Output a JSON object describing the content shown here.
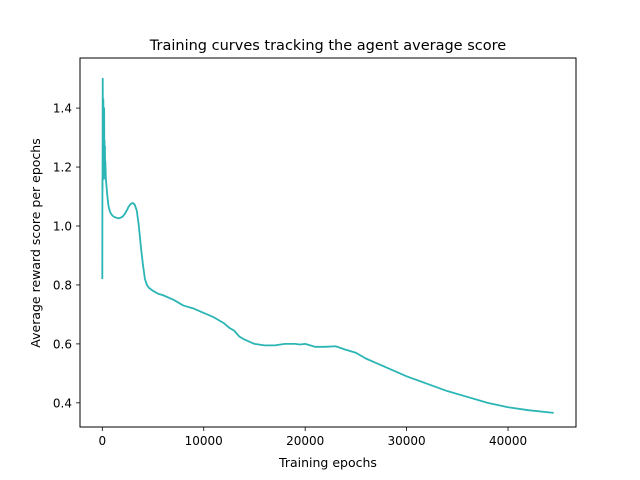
{
  "chart_data": {
    "type": "line",
    "title": "Training curves tracking the agent average score",
    "xlabel": "Training epochs",
    "ylabel": "Average reward score per epochs",
    "xlim": [
      -2200,
      46700
    ],
    "ylim": [
      0.318,
      1.57
    ],
    "x_ticks": [
      0,
      10000,
      20000,
      30000,
      40000
    ],
    "x_tick_labels": [
      "0",
      "10000",
      "20000",
      "30000",
      "40000"
    ],
    "y_ticks": [
      0.4,
      0.6,
      0.8,
      1.0,
      1.2,
      1.4
    ],
    "y_tick_labels": [
      "0.4",
      "0.6",
      "0.8",
      "1.0",
      "1.2",
      "1.4"
    ],
    "grid": false,
    "legend": "none",
    "series": [
      {
        "color": "#2cb5b5",
        "x": [
          0,
          10,
          20,
          40,
          60,
          80,
          100,
          120,
          140,
          160,
          180,
          200,
          220,
          240,
          260,
          280,
          300,
          350,
          400,
          450,
          500,
          600,
          700,
          800,
          900,
          1000,
          1200,
          1400,
          1600,
          1800,
          2000,
          2200,
          2400,
          2600,
          2800,
          3000,
          3100,
          3200,
          3400,
          3600,
          3800,
          4000,
          4200,
          4400,
          4600,
          5000,
          5500,
          6000,
          7000,
          8000,
          9000,
          10000,
          11000,
          12000,
          12500,
          13000,
          13500,
          14000,
          15000,
          16000,
          17000,
          18000,
          19000,
          19500,
          20000,
          21000,
          22000,
          23000,
          24000,
          25000,
          26000,
          28000,
          30000,
          32000,
          34000,
          36000,
          38000,
          40000,
          42000,
          44500
        ],
        "y": [
          0.82,
          1.16,
          1.12,
          1.5,
          1.34,
          1.2,
          1.43,
          1.3,
          1.33,
          1.16,
          1.4,
          1.25,
          1.29,
          1.2,
          1.27,
          1.18,
          1.22,
          1.16,
          1.14,
          1.12,
          1.1,
          1.07,
          1.055,
          1.045,
          1.04,
          1.035,
          1.03,
          1.028,
          1.026,
          1.028,
          1.032,
          1.04,
          1.052,
          1.066,
          1.075,
          1.078,
          1.076,
          1.072,
          1.052,
          1.0,
          0.93,
          0.87,
          0.82,
          0.8,
          0.79,
          0.78,
          0.77,
          0.765,
          0.75,
          0.73,
          0.72,
          0.705,
          0.69,
          0.67,
          0.655,
          0.645,
          0.625,
          0.615,
          0.6,
          0.595,
          0.595,
          0.6,
          0.6,
          0.598,
          0.6,
          0.59,
          0.59,
          0.592,
          0.58,
          0.57,
          0.55,
          0.52,
          0.49,
          0.465,
          0.44,
          0.42,
          0.4,
          0.385,
          0.375,
          0.366
        ]
      }
    ]
  }
}
